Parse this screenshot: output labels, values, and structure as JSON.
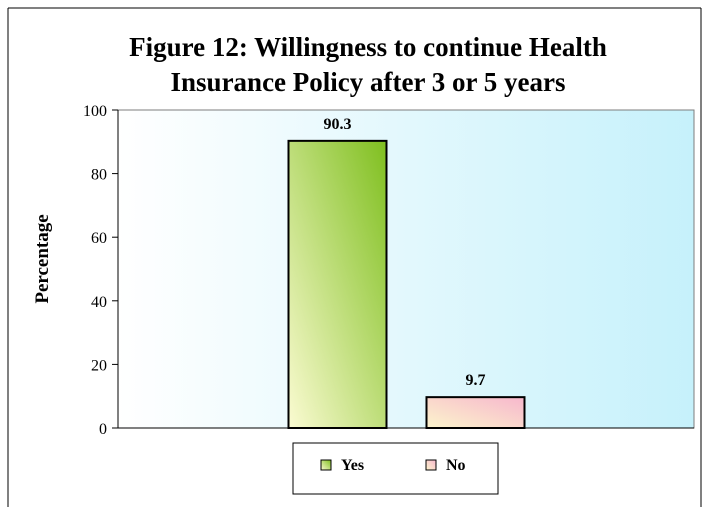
{
  "chart_data": {
    "type": "bar",
    "title_line1": "Figure 12: Willingness to continue Health",
    "title_line2": "Insurance Policy after 3 or 5 years",
    "xlabel": "",
    "ylabel": "Percentage",
    "ylim": [
      0,
      100
    ],
    "yticks": [
      0,
      20,
      40,
      60,
      80,
      100
    ],
    "categories": [
      "Yes",
      "No"
    ],
    "values": [
      90.3,
      9.7
    ],
    "data_labels": [
      "90.3",
      "9.7"
    ],
    "legend_position": "bottom",
    "grid": false,
    "colors": {
      "Yes": {
        "start": "#7fbf1f",
        "end": "#fbfbd2"
      },
      "No": {
        "start": "#f7b7cd",
        "end": "#fcf5cc"
      },
      "plot_background_start": "#ffffff",
      "plot_background_end": "#c6f1fb"
    }
  },
  "legend": {
    "items": [
      "Yes",
      "No"
    ]
  }
}
